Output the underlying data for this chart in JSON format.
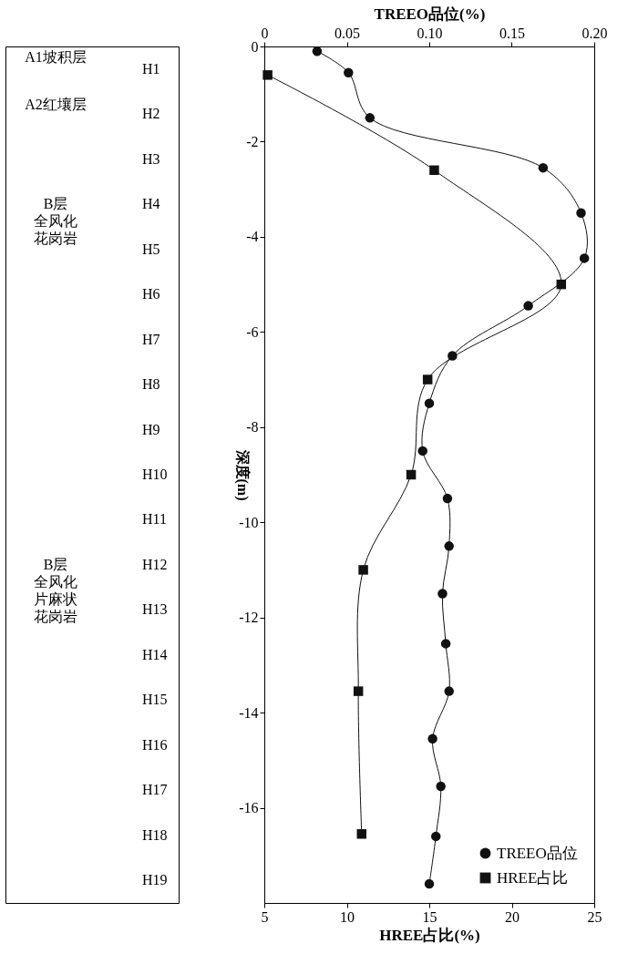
{
  "chart_data": [
    {
      "type": "other",
      "categories": [
        "H1",
        "H2",
        "H3",
        "H4",
        "H5",
        "H6",
        "H7",
        "H8",
        "H9",
        "H10",
        "H11",
        "H12",
        "H13",
        "H14",
        "H15",
        "H16",
        "H17",
        "H18",
        "H19"
      ],
      "annotations": [
        "A1坡积层",
        "A2红壤层",
        "B层全风化花岗岩",
        "B层全风化片麻状花岗岩"
      ]
    },
    {
      "type": "line",
      "line_style": "solid",
      "grid": false,
      "legend": "bottom right",
      "xlabel": "HREE占比(%)",
      "x2label": "TREEO品位(%)",
      "ylabel": "深度(m)",
      "xlim": [
        5,
        25
      ],
      "xticks": [
        5,
        10,
        15,
        20,
        25
      ],
      "x2lim": [
        0,
        0.2
      ],
      "x2ticks": [
        0,
        0.05,
        {
          "value": 0.1,
          "label": "0.10"
        },
        0.15,
        {
          "value": 0.2,
          "label": "0.20"
        }
      ],
      "ylim": [
        -18,
        0
      ],
      "yticks": [
        0,
        -2,
        -4,
        -6,
        -8,
        -10,
        -12,
        -14,
        -16
      ],
      "series": [
        {
          "name": "TREEO品位",
          "color": "#111111",
          "axis": "x2",
          "marker": "circle",
          "x": [
            0.032,
            0.051,
            0.064,
            0.169,
            0.192,
            0.194,
            0.16,
            0.114,
            0.1,
            0.096,
            0.111,
            0.112,
            0.108,
            0.11,
            0.112,
            0.102,
            0.107,
            0.104,
            0.1
          ],
          "values": [
            -0.1,
            -0.55,
            -1.5,
            -2.55,
            -3.5,
            -4.45,
            -5.45,
            -6.5,
            -7.5,
            -8.5,
            -9.5,
            -10.5,
            -11.5,
            -12.55,
            -13.55,
            -14.55,
            -15.55,
            -16.6,
            -17.6
          ]
        },
        {
          "name": "HREE占比",
          "color": "#111111",
          "marker": "square",
          "x": [
            5.2,
            15.3,
            23.0,
            14.9,
            13.9,
            11.0,
            10.7,
            10.9
          ],
          "values": [
            -0.6,
            -2.6,
            -5.0,
            -7.0,
            -9.0,
            -11.0,
            -13.55,
            -16.55
          ]
        }
      ]
    }
  ]
}
